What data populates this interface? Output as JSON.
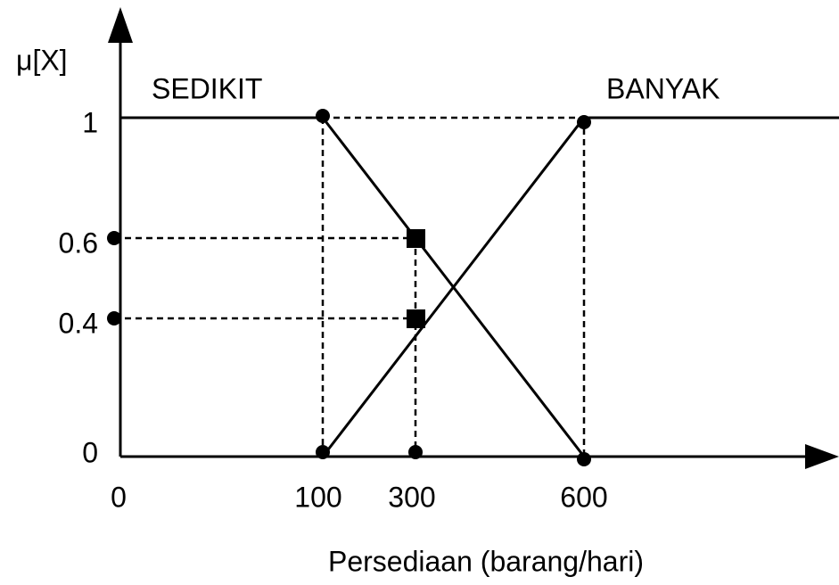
{
  "y_axis_label": "μ[X]",
  "x_axis_label": "Persediaan (barang/hari)",
  "sets": [
    "SEDIKIT",
    "BANYAK"
  ],
  "x_ticks": [
    "0",
    "100",
    "300",
    "600"
  ],
  "y_ticks": [
    "1",
    "0.6",
    "0.4",
    "0"
  ]
}
